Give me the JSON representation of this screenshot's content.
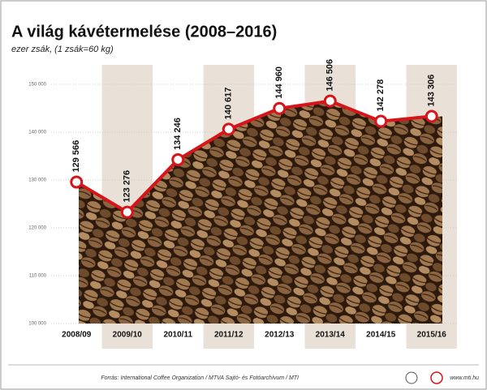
{
  "chart_data": {
    "type": "line",
    "title": "A világ kávétermelése (2008–2016)",
    "subtitle": "ezer zsák, (1 zsák=60 kg)",
    "source": "Forrás: International Coffee Organization / MTVA Sajtó- és Fotóarchívum / MTI",
    "website": "www.mti.hu",
    "categories": [
      "2008/09",
      "2009/10",
      "2010/11",
      "2011/12",
      "2012/13",
      "2013/14",
      "2014/15",
      "2015/16"
    ],
    "values": [
      129566,
      123276,
      134246,
      140617,
      144960,
      146506,
      142278,
      143306
    ],
    "value_labels": [
      "129 566",
      "123 276",
      "134 246",
      "140 617",
      "144 960",
      "146 506",
      "142 278",
      "143 306"
    ],
    "color": "#d7141a",
    "ylim": [
      100000,
      150000
    ],
    "yticks": [
      {
        "value": 100000,
        "label": "100 000"
      },
      {
        "value": 110000,
        "label": "110 000"
      },
      {
        "value": 120000,
        "label": "120 000"
      },
      {
        "value": 130000,
        "label": "130 000"
      },
      {
        "value": 140000,
        "label": "140 000"
      },
      {
        "value": 150000,
        "label": "150 000"
      }
    ],
    "grid": true
  }
}
